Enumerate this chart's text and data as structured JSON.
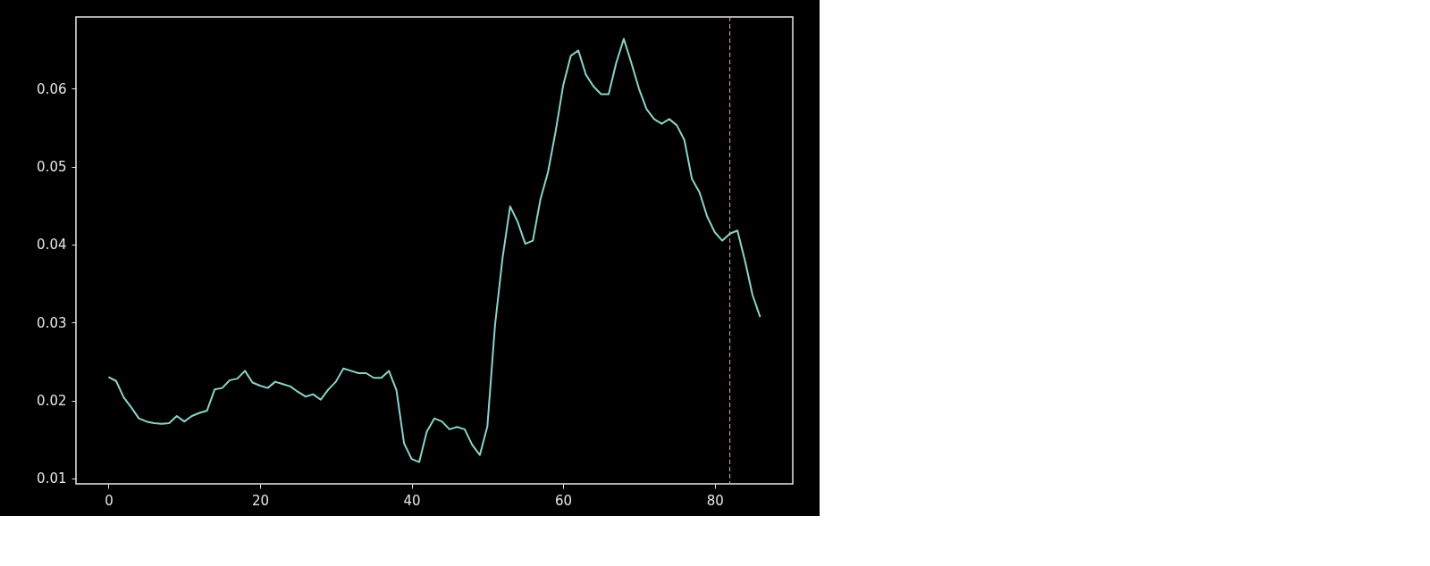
{
  "chart_data": {
    "type": "line",
    "x": [
      0,
      1,
      2,
      3,
      4,
      5,
      6,
      7,
      8,
      9,
      10,
      11,
      12,
      13,
      14,
      15,
      16,
      17,
      18,
      19,
      20,
      21,
      22,
      23,
      24,
      25,
      26,
      27,
      28,
      29,
      30,
      31,
      32,
      33,
      34,
      35,
      36,
      37,
      38,
      39,
      40,
      41,
      42,
      43,
      44,
      45,
      46,
      47,
      48,
      49,
      50,
      51,
      52,
      53,
      54,
      55,
      56,
      57,
      58,
      59,
      60,
      61,
      62,
      63,
      64,
      65,
      66,
      67,
      68,
      69,
      70,
      71,
      72,
      73,
      74,
      75,
      76,
      77,
      78,
      79,
      80,
      81,
      82,
      83,
      84,
      85,
      86
    ],
    "series": [
      {
        "color": "#8dd3c7",
        "values": [
          0.023,
          0.0225,
          0.0204,
          0.0191,
          0.0177,
          0.0173,
          0.0171,
          0.017,
          0.0171,
          0.018,
          0.0173,
          0.018,
          0.0184,
          0.0187,
          0.0214,
          0.0216,
          0.0226,
          0.0228,
          0.0238,
          0.0223,
          0.0219,
          0.0216,
          0.0224,
          0.0221,
          0.0218,
          0.0211,
          0.0205,
          0.0208,
          0.0201,
          0.0214,
          0.0224,
          0.0241,
          0.0238,
          0.0235,
          0.0235,
          0.0229,
          0.0229,
          0.0238,
          0.0213,
          0.0145,
          0.0125,
          0.0121,
          0.016,
          0.0177,
          0.0173,
          0.0163,
          0.0166,
          0.0163,
          0.0143,
          0.013,
          0.0167,
          0.0296,
          0.0383,
          0.0449,
          0.0429,
          0.0401,
          0.0405,
          0.0458,
          0.0493,
          0.0545,
          0.0604,
          0.0642,
          0.0649,
          0.0618,
          0.0603,
          0.0593,
          0.0593,
          0.0633,
          0.0664,
          0.0633,
          0.06,
          0.0574,
          0.0561,
          0.0555,
          0.0561,
          0.0553,
          0.0534,
          0.0484,
          0.0467,
          0.0436,
          0.0416,
          0.0405,
          0.0414,
          0.0418,
          0.0379,
          0.0335,
          0.0307
        ]
      }
    ],
    "xlim": [
      -4.3,
      90.3
    ],
    "xticks": [
      0,
      20,
      40,
      60,
      80
    ],
    "ylim": [
      0.0093,
      0.0692
    ],
    "yticks": [
      0.01,
      0.02,
      0.03,
      0.04,
      0.05,
      0.06
    ],
    "ref_lines": [
      {
        "axis": "x",
        "value": 82,
        "color": "#e8a8a8",
        "line_style": "dashed"
      }
    ],
    "grid": false,
    "marker": "none",
    "line_style": "solid"
  }
}
